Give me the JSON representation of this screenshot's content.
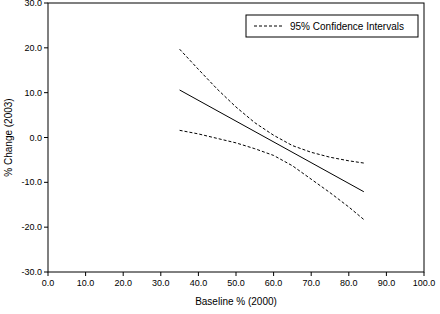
{
  "chart_data": {
    "type": "line",
    "x_label": "Baseline % (2000)",
    "y_label": "% Change (2003)",
    "xlim": [
      0,
      100
    ],
    "ylim": [
      -30,
      30
    ],
    "xticks": [
      {
        "value": 0,
        "label": "0.0"
      },
      {
        "value": 10,
        "label": "10.0"
      },
      {
        "value": 20,
        "label": "20.0"
      },
      {
        "value": 30,
        "label": "30.0"
      },
      {
        "value": 40,
        "label": "40.0"
      },
      {
        "value": 50,
        "label": "50.0"
      },
      {
        "value": 60,
        "label": "60.0"
      },
      {
        "value": 70,
        "label": "70.0"
      },
      {
        "value": 80,
        "label": "80.0"
      },
      {
        "value": 90,
        "label": "90.0"
      },
      {
        "value": 100,
        "label": "100.0"
      }
    ],
    "yticks": [
      {
        "value": -30,
        "label": "-30.0"
      },
      {
        "value": -20,
        "label": "-20.0"
      },
      {
        "value": -10,
        "label": "-10.0"
      },
      {
        "value": 0,
        "label": "0.0"
      },
      {
        "value": 10,
        "label": "10.0"
      },
      {
        "value": 20,
        "label": "20.0"
      },
      {
        "value": 30,
        "label": "30.0"
      }
    ],
    "grid": false,
    "legend": "upper right",
    "series": [
      {
        "color": "#000000",
        "line_style": "solid",
        "x": [
          35,
          84
        ],
        "values": [
          10.6,
          -12.1
        ]
      },
      {
        "name": "95% Confidence Intervals",
        "color": "#000000",
        "line_style": "dashed",
        "x": [
          35,
          40,
          45,
          50,
          55,
          60,
          65,
          70,
          75,
          80,
          84
        ],
        "upper": [
          19.7,
          15.2,
          10.8,
          6.8,
          3.3,
          0.5,
          -1.8,
          -3.3,
          -4.4,
          -5.2,
          -5.7
        ],
        "lower": [
          1.6,
          0.8,
          -0.2,
          -1.2,
          -2.5,
          -4.0,
          -6.3,
          -9.3,
          -12.3,
          -15.5,
          -18.3
        ]
      }
    ]
  }
}
